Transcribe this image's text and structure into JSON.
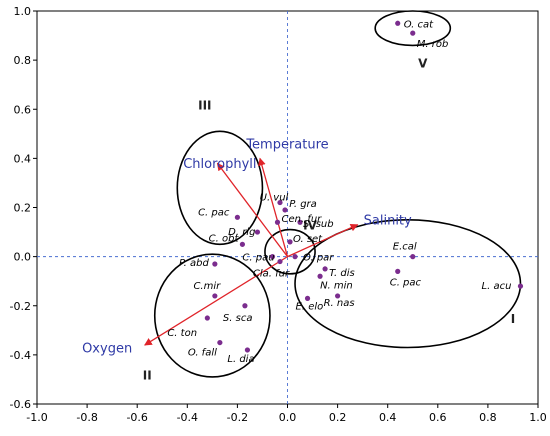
{
  "chart_data": {
    "type": "scatter",
    "title": "",
    "xlabel": "",
    "ylabel": "",
    "xlim": [
      -1.0,
      1.0
    ],
    "ylim": [
      -0.6,
      1.0
    ],
    "xticks": [
      -1.0,
      -0.8,
      -0.6,
      -0.4,
      -0.2,
      0.0,
      0.2,
      0.4,
      0.6,
      0.8,
      1.0
    ],
    "yticks": [
      -0.6,
      -0.4,
      -0.2,
      0.0,
      0.2,
      0.4,
      0.6,
      0.8,
      1.0
    ],
    "xtick_labels": [
      "-1.0",
      "-0.8",
      "-0.6",
      "-0.4",
      "-0.2",
      "0.0",
      "0.2",
      "0.4",
      "0.6",
      "0.8",
      "1.0"
    ],
    "ytick_labels": [
      "-0.6",
      "-0.4",
      "-0.2",
      "0.0",
      "0.2",
      "0.4",
      "0.6",
      "0.8",
      "1.0"
    ],
    "grid": false,
    "reference_lines": {
      "x": 0.0,
      "y": 0.0
    },
    "colors": {
      "points": "#7b2d8e",
      "vectors": "#e0242a",
      "vector_labels": "#2f3aa6",
      "ref_lines": "#4a6fd1"
    },
    "points": [
      {
        "label": "O. cat",
        "x": 0.44,
        "y": 0.95
      },
      {
        "label": "M. rob",
        "x": 0.5,
        "y": 0.91
      },
      {
        "label": "U. vul",
        "x": -0.03,
        "y": 0.22
      },
      {
        "label": "P. gra",
        "x": -0.01,
        "y": 0.19
      },
      {
        "label": "Cen. fur",
        "x": -0.04,
        "y": 0.14
      },
      {
        "label": "C. pac",
        "x": -0.2,
        "y": 0.16
      },
      {
        "label": "D. rig",
        "x": -0.12,
        "y": 0.1
      },
      {
        "label": "S. sub",
        "x": 0.05,
        "y": 0.14
      },
      {
        "label": "C. obt",
        "x": -0.18,
        "y": 0.05
      },
      {
        "label": "O. set",
        "x": 0.01,
        "y": 0.06
      },
      {
        "label": "C. pau",
        "x": -0.06,
        "y": 0.0
      },
      {
        "label": "O. par",
        "x": 0.03,
        "y": 0.0
      },
      {
        "label": "P. abd",
        "x": -0.29,
        "y": -0.03
      },
      {
        "label": "Cla. fur",
        "x": -0.03,
        "y": -0.02
      },
      {
        "label": "E.cal",
        "x": 0.5,
        "y": 0.0
      },
      {
        "label": "L. acu",
        "x": 0.93,
        "y": -0.12
      },
      {
        "label": "T. dis",
        "x": 0.15,
        "y": -0.05
      },
      {
        "label": "N. min",
        "x": 0.13,
        "y": -0.08
      },
      {
        "label": "C. pac",
        "x": 0.44,
        "y": -0.06
      },
      {
        "label": "E. elo",
        "x": 0.08,
        "y": -0.17
      },
      {
        "label": "R. nas",
        "x": 0.2,
        "y": -0.16
      },
      {
        "label": "C.mir",
        "x": -0.29,
        "y": -0.16
      },
      {
        "label": "S. sca",
        "x": -0.17,
        "y": -0.2
      },
      {
        "label": "C. ton",
        "x": -0.32,
        "y": -0.25
      },
      {
        "label": "O. fall",
        "x": -0.27,
        "y": -0.35
      },
      {
        "label": "L. dia",
        "x": -0.16,
        "y": -0.38
      }
    ],
    "vectors": [
      {
        "label": "Temperature",
        "x": -0.11,
        "y": 0.4
      },
      {
        "label": "Chlorophyll",
        "x": -0.28,
        "y": 0.38
      },
      {
        "label": "Salinity",
        "x": 0.28,
        "y": 0.13
      },
      {
        "label": "Oxygen",
        "x": -0.57,
        "y": -0.36
      }
    ],
    "groups": [
      {
        "label": "I",
        "center": [
          0.48,
          -0.11
        ],
        "rx": 0.45,
        "ry": 0.26
      },
      {
        "label": "II",
        "center": [
          -0.3,
          -0.24
        ],
        "rx": 0.23,
        "ry": 0.25
      },
      {
        "label": "III",
        "center": [
          -0.27,
          0.28
        ],
        "rx": 0.17,
        "ry": 0.23
      },
      {
        "label": "IV",
        "center": [
          0.01,
          0.02
        ],
        "rx": 0.1,
        "ry": 0.09
      },
      {
        "label": "V",
        "center": [
          0.5,
          0.93
        ],
        "rx": 0.15,
        "ry": 0.07
      }
    ]
  }
}
